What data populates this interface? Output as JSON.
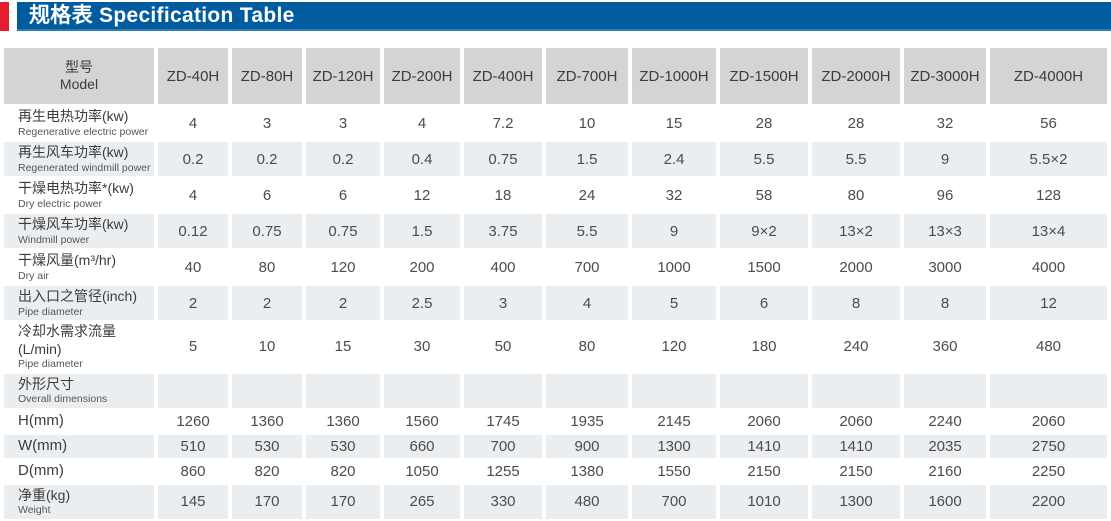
{
  "banner": {
    "title": "规格表 Specification Table"
  },
  "colors": {
    "banner_bg": "#005c9e",
    "accent_red": "#e31e2d",
    "header_cell_bg": "#d3d5d5",
    "shaded_row_bg": "#ebeef1"
  },
  "table": {
    "model_header": {
      "zh": "型号",
      "en": "Model"
    },
    "columns": [
      "ZD-40H",
      "ZD-80H",
      "ZD-120H",
      "ZD-200H",
      "ZD-400H",
      "ZD-700H",
      "ZD-1000H",
      "ZD-1500H",
      "ZD-2000H",
      "ZD-3000H",
      "ZD-4000H"
    ],
    "rows": [
      {
        "zh": "再生电热功率(kw)",
        "en": "Regenerative electric power",
        "values": [
          "4",
          "3",
          "3",
          "4",
          "7.2",
          "10",
          "15",
          "28",
          "28",
          "32",
          "56"
        ]
      },
      {
        "zh": "再生风车功率(kw)",
        "en": "Regenerated windmill power",
        "values": [
          "0.2",
          "0.2",
          "0.2",
          "0.4",
          "0.75",
          "1.5",
          "2.4",
          "5.5",
          "5.5",
          "9",
          "5.5×2"
        ]
      },
      {
        "zh": "干燥电热功率*(kw)",
        "en": "Dry electric power",
        "values": [
          "4",
          "6",
          "6",
          "12",
          "18",
          "24",
          "32",
          "58",
          "80",
          "96",
          "128"
        ]
      },
      {
        "zh": "干燥风车功率(kw)",
        "en": "Windmill power",
        "values": [
          "0.12",
          "0.75",
          "0.75",
          "1.5",
          "3.75",
          "5.5",
          "9",
          "9×2",
          "13×2",
          "13×3",
          "13×4"
        ]
      },
      {
        "zh": "干燥风量(m³/hr)",
        "en": "Dry air",
        "values": [
          "40",
          "80",
          "120",
          "200",
          "400",
          "700",
          "1000",
          "1500",
          "2000",
          "3000",
          "4000"
        ]
      },
      {
        "zh": "出入口之管径(inch)",
        "en": "Pipe diameter",
        "values": [
          "2",
          "2",
          "2",
          "2.5",
          "3",
          "4",
          "5",
          "6",
          "8",
          "8",
          "12"
        ]
      },
      {
        "zh": "冷却水需求流量(L/min)",
        "en": "Pipe diameter",
        "values": [
          "5",
          "10",
          "15",
          "30",
          "50",
          "80",
          "120",
          "180",
          "240",
          "360",
          "480"
        ]
      },
      {
        "zh": "外形尺寸",
        "en": "Overall dimensions",
        "values": [
          "",
          "",
          "",
          "",
          "",
          "",
          "",
          "",
          "",
          "",
          ""
        ]
      },
      {
        "zh": "H(mm)",
        "en": "",
        "values": [
          "1260",
          "1360",
          "1360",
          "1560",
          "1745",
          "1935",
          "2145",
          "2060",
          "2060",
          "2240",
          "2060"
        ]
      },
      {
        "zh": "W(mm)",
        "en": "",
        "values": [
          "510",
          "530",
          "530",
          "660",
          "700",
          "900",
          "1300",
          "1410",
          "1410",
          "2035",
          "2750"
        ]
      },
      {
        "zh": "D(mm)",
        "en": "",
        "values": [
          "860",
          "820",
          "820",
          "1050",
          "1255",
          "1380",
          "1550",
          "2150",
          "2150",
          "2160",
          "2250"
        ]
      },
      {
        "zh": "净重(kg)",
        "en": "Weight",
        "values": [
          "145",
          "170",
          "170",
          "265",
          "330",
          "480",
          "700",
          "1010",
          "1300",
          "1600",
          "2200"
        ]
      }
    ]
  }
}
